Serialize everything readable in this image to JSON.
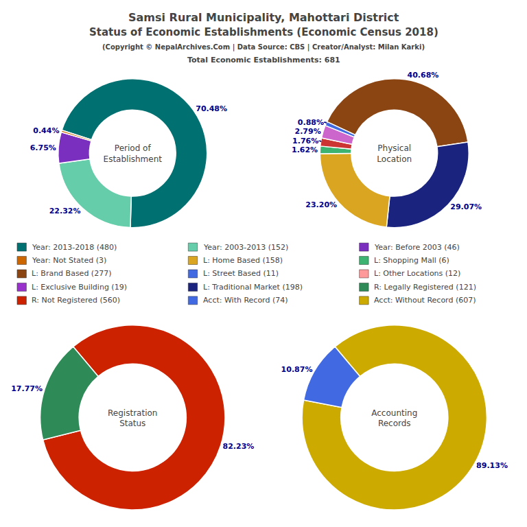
{
  "title": "Samsi Rural Municipality, Mahottari District\nStatus of Economic Establishments (Economic Census 2018)",
  "subtitle": "(Copyright © NepalArchives.Com | Data Source: CBS | Creator/Analyst: Milan Karki)\nTotal Economic Establishments: 681",
  "chart_data": [
    {
      "type": "pie",
      "title": "Period of\nEstablishment",
      "values": [
        70.48,
        22.32,
        6.75,
        0.44
      ],
      "value_labels": [
        "70.48%",
        "22.32%",
        "6.75%",
        "0.44%"
      ],
      "colors": [
        "#007070",
        "#66cdaa",
        "#7B2FBE",
        "#cc6600"
      ]
    },
    {
      "type": "pie",
      "title": "Physical\nLocation",
      "values": [
        40.68,
        29.07,
        23.2,
        1.62,
        1.76,
        2.79,
        0.88
      ],
      "value_labels": [
        "40.68%",
        "29.07%",
        "23.20%",
        "1.62%",
        "1.76%",
        "2.79%",
        "0.88%"
      ],
      "colors": [
        "#8B4513",
        "#1a237e",
        "#DAA520",
        "#3CB371",
        "#cc3333",
        "#cc66cc",
        "#4169E1"
      ]
    },
    {
      "type": "pie",
      "title": "Registration\nStatus",
      "values": [
        82.23,
        17.77
      ],
      "value_labels": [
        "82.23%",
        "17.77%"
      ],
      "colors": [
        "#cc2200",
        "#2e8b57"
      ]
    },
    {
      "type": "pie",
      "title": "Accounting\nRecords",
      "values": [
        89.13,
        10.87
      ],
      "value_labels": [
        "89.13%",
        "10.87%"
      ],
      "colors": [
        "#ccaa00",
        "#4169E1"
      ]
    }
  ],
  "series": [
    {
      "name": "Year: 2013-2018 (480)",
      "color": "#007070"
    },
    {
      "name": "Year: 2003-2013 (152)",
      "color": "#66cdaa"
    },
    {
      "name": "Year: Before 2003 (46)",
      "color": "#7B2FBE"
    },
    {
      "name": "Year: Not Stated (3)",
      "color": "#cc6600"
    },
    {
      "name": "L: Home Based (158)",
      "color": "#DAA520"
    },
    {
      "name": "L: Shopping Mall (6)",
      "color": "#3CB371"
    },
    {
      "name": "L: Brand Based (277)",
      "color": "#8B4513"
    },
    {
      "name": "L: Street Based (11)",
      "color": "#4169E1"
    },
    {
      "name": "L: Other Locations (12)",
      "color": "#ff9999"
    },
    {
      "name": "L: Exclusive Building (19)",
      "color": "#9932CC"
    },
    {
      "name": "L: Traditional Market (198)",
      "color": "#1a237e"
    },
    {
      "name": "R: Legally Registered (121)",
      "color": "#2e8b57"
    },
    {
      "name": "R: Not Registered (560)",
      "color": "#cc2200"
    },
    {
      "name": "Acct: With Record (74)",
      "color": "#4169E1"
    },
    {
      "name": "Acct: Without Record (607)",
      "color": "#ccaa00"
    }
  ]
}
